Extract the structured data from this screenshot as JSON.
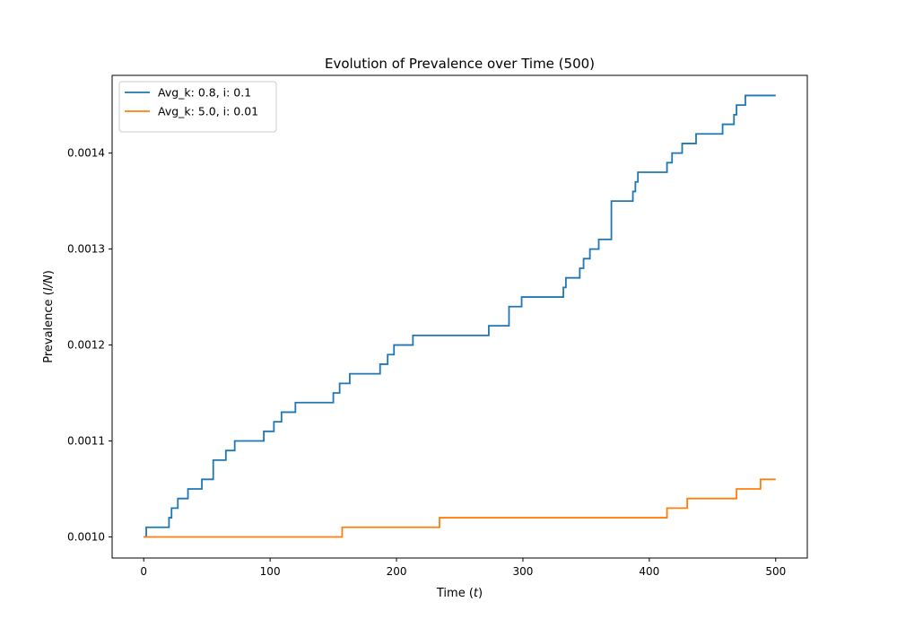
{
  "chart_data": {
    "type": "line",
    "title": "Evolution of Prevalence over Time (500)",
    "xlabel": "Time (t)",
    "xlabel_parts": {
      "prefix": "Time (",
      "var": "t",
      "suffix": ")"
    },
    "ylabel": "Prevalence (I/N)",
    "ylabel_parts": {
      "prefix": "Prevalence (",
      "var": "I/N",
      "suffix": ")"
    },
    "xlim": [
      -25,
      525
    ],
    "ylim": [
      0.000978,
      0.001481
    ],
    "xticks": [
      0,
      100,
      200,
      300,
      400,
      500
    ],
    "xtick_labels": [
      "0",
      "100",
      "200",
      "300",
      "400",
      "500"
    ],
    "yticks": [
      0.001,
      0.0011,
      0.0012,
      0.0013,
      0.0014
    ],
    "ytick_labels": [
      "0.0010",
      "0.0011",
      "0.0012",
      "0.0013",
      "0.0014"
    ],
    "grid": false,
    "legend_position": "upper left",
    "series": [
      {
        "name": "Avg_k: 0.8, i: 0.1",
        "color": "#1f77b4",
        "step": true,
        "x": [
          0,
          2,
          18,
          20,
          22,
          27,
          35,
          46,
          55,
          65,
          72,
          95,
          103,
          109,
          120,
          150,
          155,
          163,
          172,
          187,
          193,
          198,
          213,
          273,
          289,
          299,
          332,
          334,
          345,
          348,
          353,
          360,
          370,
          387,
          389,
          391,
          414,
          418,
          426,
          437,
          458,
          467,
          469,
          472,
          476,
          500
        ],
        "y": [
          0.001,
          0.00101,
          0.00101,
          0.00102,
          0.00103,
          0.00104,
          0.00105,
          0.00106,
          0.00108,
          0.00109,
          0.0011,
          0.00111,
          0.00112,
          0.00113,
          0.00114,
          0.00115,
          0.00116,
          0.00117,
          0.00117,
          0.00118,
          0.00119,
          0.0012,
          0.00121,
          0.00122,
          0.00124,
          0.00125,
          0.00126,
          0.00127,
          0.00128,
          0.00129,
          0.0013,
          0.00131,
          0.00135,
          0.00136,
          0.00137,
          0.00138,
          0.00139,
          0.0014,
          0.00141,
          0.00142,
          0.00143,
          0.00144,
          0.00145,
          0.00145,
          0.00146,
          0.00146
        ]
      },
      {
        "name": "Avg_k: 5.0, i: 0.01",
        "color": "#ff7f0e",
        "step": true,
        "x": [
          0,
          157,
          234,
          414,
          430,
          469,
          488,
          500
        ],
        "y": [
          0.001,
          0.00101,
          0.00102,
          0.00103,
          0.00104,
          0.00105,
          0.00106,
          0.00106
        ]
      }
    ]
  }
}
